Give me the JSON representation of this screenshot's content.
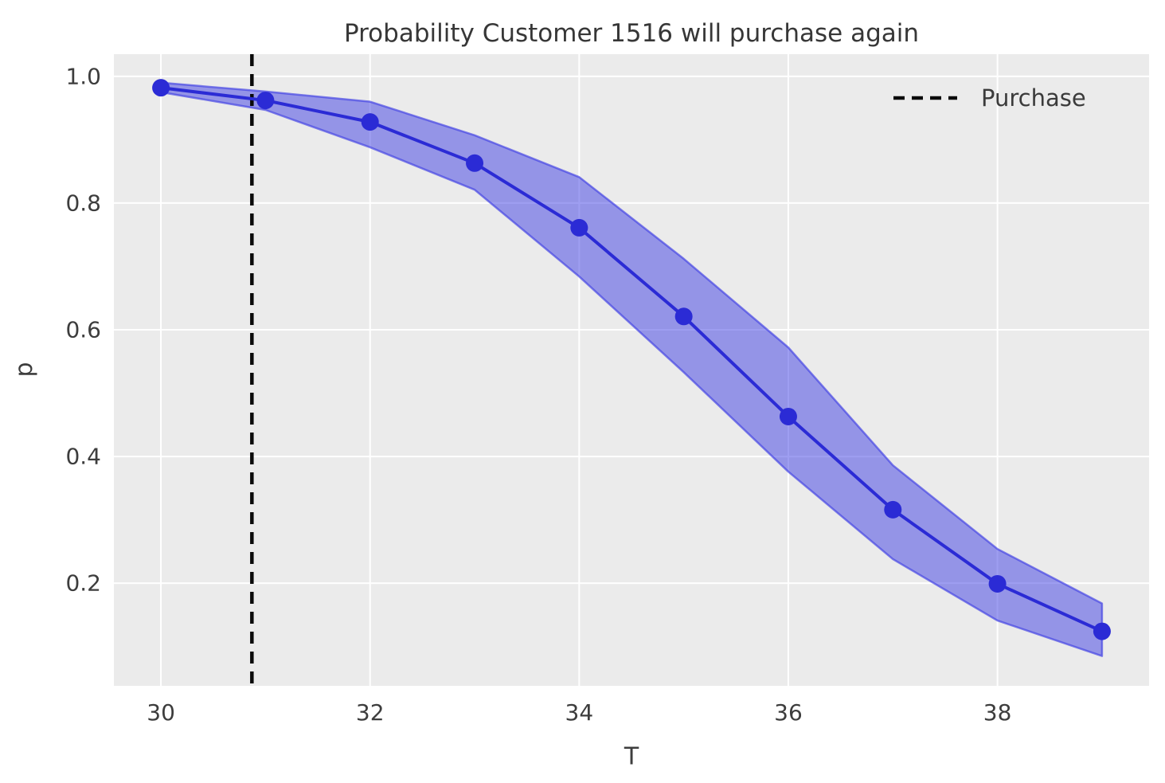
{
  "figure": {
    "kind": "matplotlib-style probability plot",
    "background": "#ffffff"
  },
  "chart_data": {
    "type": "line",
    "title": "Probability Customer 1516 will purchase again",
    "xlabel": "T",
    "ylabel": "p",
    "x": [
      30,
      31,
      32,
      33,
      34,
      35,
      36,
      37,
      38,
      39
    ],
    "series": [
      {
        "name": "p",
        "values": [
          0.982,
          0.962,
          0.928,
          0.863,
          0.761,
          0.621,
          0.463,
          0.316,
          0.199,
          0.124
        ],
        "color": "#2b2bd5",
        "marker": "circle",
        "marker_radius": 11,
        "line_width": 4
      }
    ],
    "confidence_band": {
      "upper": [
        0.99,
        0.976,
        0.96,
        0.907,
        0.841,
        0.712,
        0.572,
        0.386,
        0.254,
        0.168
      ],
      "lower": [
        0.975,
        0.947,
        0.888,
        0.821,
        0.684,
        0.533,
        0.376,
        0.238,
        0.141,
        0.085
      ],
      "fill_color": "rgba(62,62,228,0.50)",
      "edge_color": "rgba(62,62,228,0.65)",
      "edge_width": 2.5
    },
    "vline": {
      "x": 30.87,
      "label": "Purchase",
      "style": "dashed",
      "color": "#0a0a0a",
      "line_width": 4.5,
      "dash_pattern": "15 10"
    },
    "xlim": [
      29.55,
      39.45
    ],
    "ylim": [
      0.038,
      1.035
    ],
    "xticks": {
      "values": [
        30,
        32,
        34,
        36,
        38
      ],
      "labels": [
        "30",
        "32",
        "34",
        "36",
        "38"
      ]
    },
    "yticks": {
      "values": [
        1.0,
        0.8,
        0.6,
        0.4,
        0.2
      ],
      "labels": [
        "1.0",
        "0.8",
        "0.6",
        "0.4",
        "0.2"
      ]
    },
    "grid": true,
    "grid_color": "#ffffff",
    "plot_background": "#ebebeb",
    "legend": {
      "position": "upper right",
      "frame": false,
      "entries": [
        {
          "label": "Purchase",
          "style": "dashed-black-line"
        }
      ]
    }
  }
}
